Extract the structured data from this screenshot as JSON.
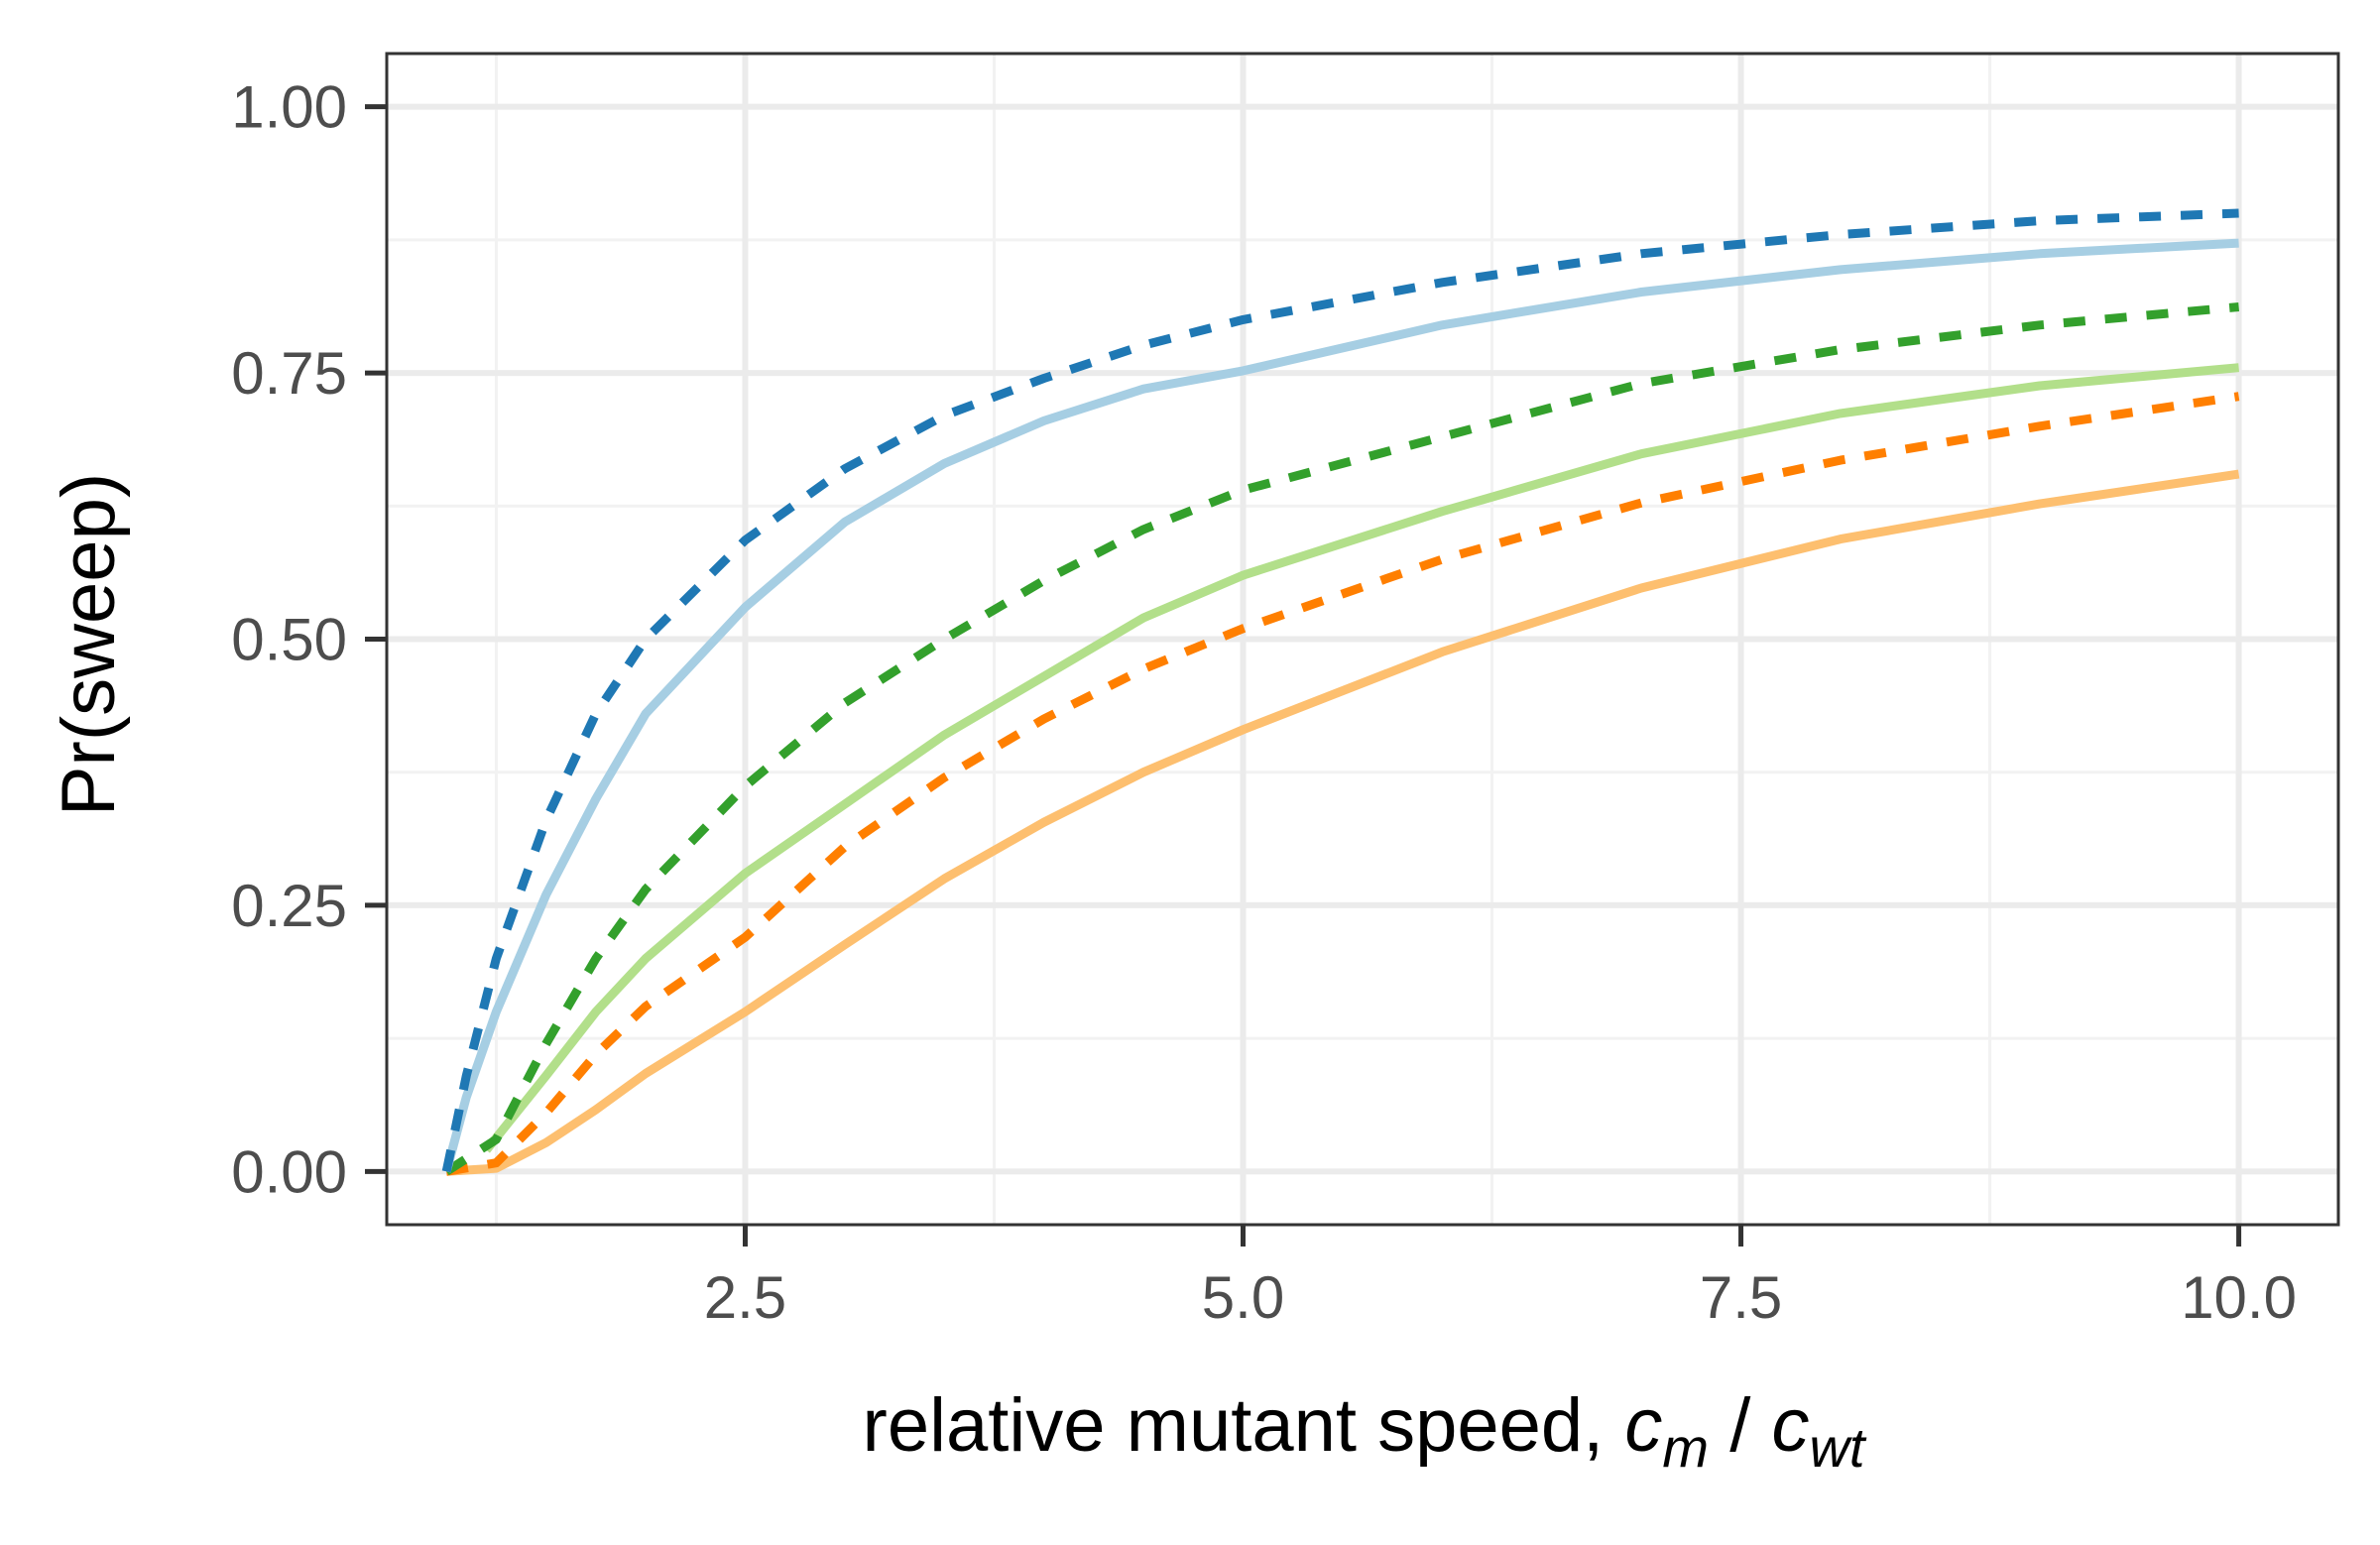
{
  "chart_data": {
    "type": "line",
    "title": "",
    "xlabel": {
      "prefix": "relative mutant speed, ",
      "numerator": "c",
      "numerator_sub": "m",
      "divider": " / ",
      "denominator": "c",
      "denominator_sub": "wt"
    },
    "ylabel": "Pr(sweep)",
    "xlim": [
      0.7,
      10.5
    ],
    "ylim": [
      -0.05,
      1.05
    ],
    "x_ticks": [
      2.5,
      5.0,
      7.5,
      10.0
    ],
    "x_tick_labels": [
      "2.5",
      "5.0",
      "7.5",
      "10.0"
    ],
    "y_ticks": [
      0,
      0.25,
      0.5,
      0.75,
      1.0
    ],
    "y_tick_labels": [
      "0.00",
      "0.25",
      "0.50",
      "0.75",
      "1.00"
    ],
    "grid": true,
    "legend": "none",
    "colors": {
      "panel_border": "#333333",
      "grid_major": "#ebebeb",
      "grid_minor": "#f2f2f2",
      "tick_mark": "#333333"
    },
    "series": [
      {
        "style": "solid",
        "color": "#fdbf6f",
        "x": [
          1.0,
          1.25,
          1.5,
          1.75,
          2.0,
          2.5,
          3.0,
          3.5,
          4.0,
          4.5,
          5.0,
          6.0,
          7.0,
          8.0,
          9.0,
          10.0
        ],
        "y": [
          0.0,
          0.003,
          0.027,
          0.058,
          0.092,
          0.15,
          0.213,
          0.275,
          0.328,
          0.375,
          0.415,
          0.488,
          0.548,
          0.594,
          0.627,
          0.655
        ]
      },
      {
        "style": "dashed",
        "color": "#ff7f00",
        "x": [
          1.0,
          1.25,
          1.5,
          1.75,
          2.0,
          2.5,
          3.0,
          3.5,
          4.0,
          4.5,
          5.0,
          6.0,
          7.0,
          8.0,
          9.0,
          10.0
        ],
        "y": [
          0.0,
          0.008,
          0.055,
          0.11,
          0.155,
          0.22,
          0.305,
          0.37,
          0.425,
          0.472,
          0.51,
          0.575,
          0.628,
          0.668,
          0.7,
          0.728
        ]
      },
      {
        "style": "solid",
        "color": "#b2df8a",
        "x": [
          1.2,
          1.5,
          1.75,
          2.0,
          2.5,
          3.0,
          3.5,
          4.0,
          4.5,
          5.0,
          6.0,
          7.0,
          8.0,
          9.0,
          10.0
        ],
        "y": [
          0.02,
          0.09,
          0.15,
          0.2,
          0.28,
          0.345,
          0.41,
          0.465,
          0.52,
          0.56,
          0.62,
          0.674,
          0.712,
          0.738,
          0.755
        ]
      },
      {
        "style": "dashed",
        "color": "#33a02c",
        "x": [
          1.0,
          1.25,
          1.5,
          1.75,
          2.0,
          2.5,
          3.0,
          3.5,
          4.0,
          4.5,
          5.0,
          6.0,
          7.0,
          8.0,
          9.0,
          10.0
        ],
        "y": [
          0.0,
          0.03,
          0.12,
          0.2,
          0.265,
          0.362,
          0.44,
          0.5,
          0.555,
          0.603,
          0.64,
          0.69,
          0.74,
          0.772,
          0.795,
          0.812
        ]
      },
      {
        "style": "solid",
        "color": "#a6cee3",
        "x": [
          1.0,
          1.1,
          1.25,
          1.5,
          1.75,
          2.0,
          2.5,
          3.0,
          3.5,
          4.0,
          4.5,
          5.0,
          6.0,
          7.0,
          8.0,
          9.0,
          10.0
        ],
        "y": [
          0.0,
          0.07,
          0.15,
          0.26,
          0.35,
          0.43,
          0.53,
          0.61,
          0.665,
          0.705,
          0.735,
          0.752,
          0.795,
          0.826,
          0.847,
          0.862,
          0.872
        ]
      },
      {
        "style": "dashed",
        "color": "#1f78b4",
        "x": [
          1.0,
          1.1,
          1.25,
          1.5,
          1.75,
          2.0,
          2.5,
          3.0,
          3.5,
          4.0,
          4.5,
          5.0,
          6.0,
          7.0,
          8.0,
          9.0,
          10.0
        ],
        "y": [
          0.0,
          0.09,
          0.2,
          0.33,
          0.43,
          0.5,
          0.593,
          0.66,
          0.71,
          0.745,
          0.776,
          0.8,
          0.835,
          0.862,
          0.88,
          0.893,
          0.9
        ]
      }
    ]
  }
}
